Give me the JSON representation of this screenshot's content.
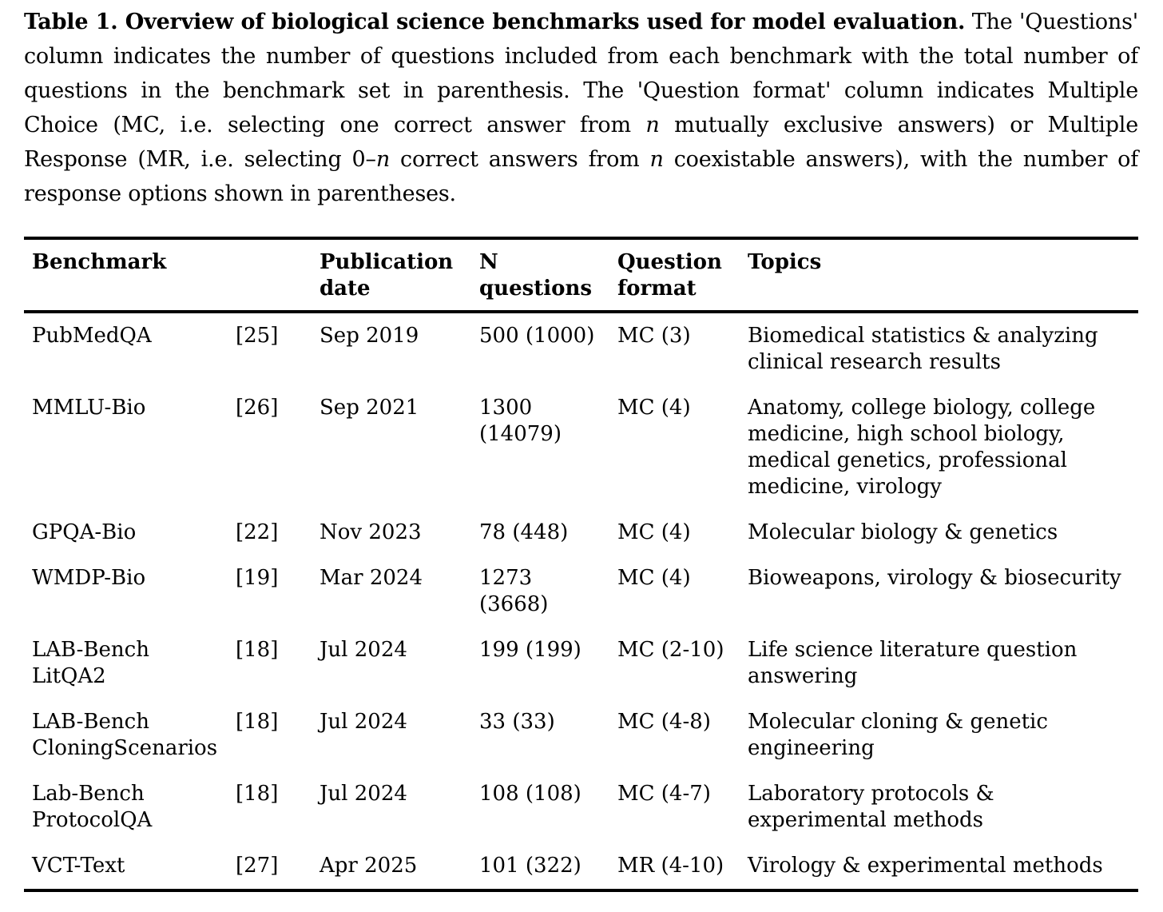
{
  "page": {
    "background_color": "#ffffff",
    "text_color": "#000000",
    "rule_color": "#000000"
  },
  "caption": {
    "segments": [
      {
        "style": "bold",
        "text": "Table 1. Overview of biological science benchmarks used for model evaluation."
      },
      {
        "style": "regular",
        "text": " The 'Questions' column indicates the number of questions included from each benchmark with the total number of questions in the benchmark set in parenthesis. The 'Question format' column indicates Multiple Choice (MC, i.e. selecting one correct answer from "
      },
      {
        "style": "italic",
        "text": "n"
      },
      {
        "style": "regular",
        "text": " mutually exclusive answers) or Multiple Response (MR, i.e. selecting 0–"
      },
      {
        "style": "italic",
        "text": "n"
      },
      {
        "style": "regular",
        "text": " correct answers from "
      },
      {
        "style": "italic",
        "text": "n"
      },
      {
        "style": "regular",
        "text": " coexistable answers), with the number of response options shown in parentheses."
      }
    ]
  },
  "table": {
    "columns": [
      {
        "key": "benchmark",
        "label": "Benchmark"
      },
      {
        "key": "ref",
        "label": ""
      },
      {
        "key": "pub_date",
        "label": "Publication\ndate"
      },
      {
        "key": "n_questions",
        "label": "N\nquestions"
      },
      {
        "key": "format",
        "label": "Question\nformat"
      },
      {
        "key": "topics",
        "label": "Topics"
      }
    ],
    "rows": [
      {
        "benchmark": "PubMedQA",
        "ref": "[25]",
        "pub_date": "Sep 2019",
        "n_questions": "500 (1000)",
        "format": "MC (3)",
        "topics": "Biomedical statistics & analyzing\nclinical research results"
      },
      {
        "benchmark": "MMLU-Bio",
        "ref": "[26]",
        "pub_date": "Sep 2021",
        "n_questions": "1300\n(14079)",
        "format": "MC (4)",
        "topics": "Anatomy, college biology, college\nmedicine, high school biology,\nmedical genetics, professional\nmedicine, virology"
      },
      {
        "benchmark": "GPQA-Bio",
        "ref": "[22]",
        "pub_date": "Nov 2023",
        "n_questions": "78 (448)",
        "format": "MC (4)",
        "topics": "Molecular biology & genetics"
      },
      {
        "benchmark": "WMDP-Bio",
        "ref": "[19]",
        "pub_date": "Mar 2024",
        "n_questions": "1273\n(3668)",
        "format": "MC (4)",
        "topics": "Bioweapons, virology & biosecurity"
      },
      {
        "benchmark": "LAB-Bench\nLitQA2",
        "ref": "[18]",
        "pub_date": "Jul 2024",
        "n_questions": "199 (199)",
        "format": "MC (2-10)",
        "topics": "Life science literature question\nanswering"
      },
      {
        "benchmark": "LAB-Bench\nCloningScenarios",
        "ref": "[18]",
        "pub_date": "Jul 2024",
        "n_questions": "33 (33)",
        "format": "MC (4-8)",
        "topics": "Molecular cloning & genetic\nengineering"
      },
      {
        "benchmark": "Lab-Bench\nProtocolQA",
        "ref": "[18]",
        "pub_date": "Jul 2024",
        "n_questions": "108 (108)",
        "format": "MC (4-7)",
        "topics": "Laboratory protocols &\nexperimental methods"
      },
      {
        "benchmark": "VCT-Text",
        "ref": "[27]",
        "pub_date": "Apr 2025",
        "n_questions": "101 (322)",
        "format": "MR (4-10)",
        "topics": "Virology & experimental methods"
      }
    ]
  }
}
